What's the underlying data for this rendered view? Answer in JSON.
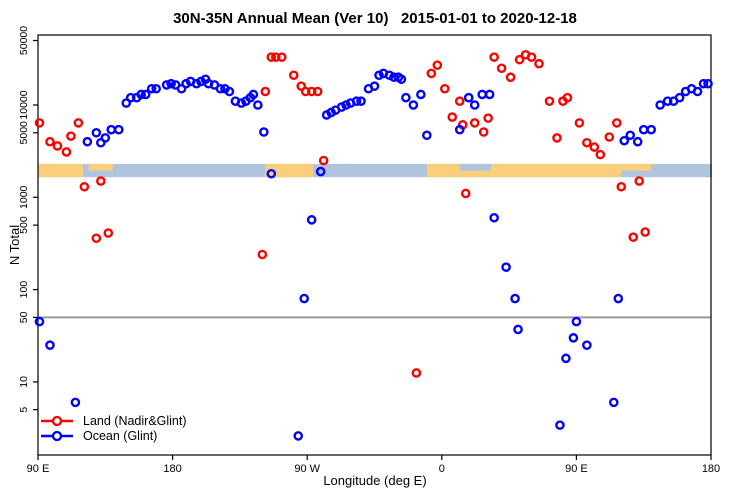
{
  "title": "30N-35N Annual Mean (Ver 10)   2015-01-01 to 2020-12-18",
  "legend": {
    "items": [
      {
        "label": "Land (Nadir&Glint)",
        "color": "#ff0000"
      },
      {
        "label": "Ocean (Glint)",
        "color": "#0000ff"
      }
    ]
  },
  "chart_data": {
    "type": "scatter",
    "title": "30N-35N Annual Mean (Ver 10)   2015-01-01 to 2020-12-18",
    "xlabel": "Longitude (deg E)",
    "ylabel": "N Total",
    "x_axis_note": "axis spans 450 degrees eastward from 90E: 90E -> 180 -> 90W -> 0 -> 90E -> 180; deg coordinate below runs 90..540",
    "x_range_deg": [
      90,
      540
    ],
    "y_scale": "log10",
    "ylim": [
      1.6,
      57000
    ],
    "grid": false,
    "x_ticks": [
      {
        "deg": 90,
        "label": "90 E"
      },
      {
        "deg": 180,
        "label": "180"
      },
      {
        "deg": 270,
        "label": "90 W"
      },
      {
        "deg": 360,
        "label": "0"
      },
      {
        "deg": 450,
        "label": "90 E"
      },
      {
        "deg": 540,
        "label": "180"
      }
    ],
    "y_ticks": [
      {
        "value": 50000,
        "label": "50000"
      },
      {
        "value": 10000,
        "label": "10000"
      },
      {
        "value": 5000,
        "label": "5000"
      },
      {
        "value": 1000,
        "label": "1000"
      },
      {
        "value": 500,
        "label": "500"
      },
      {
        "value": 100,
        "label": "100"
      },
      {
        "value": 50,
        "label": "50"
      },
      {
        "value": 10,
        "label": "10"
      },
      {
        "value": 5,
        "label": "5"
      }
    ],
    "reference_line": {
      "y": 50,
      "color": "#999999"
    },
    "map_strip": {
      "description": "land/ocean map band of the 30N-35N latitude zone drawn across the plot",
      "y_value_range": [
        1650,
        2300
      ],
      "ocean_color": "#b0c4de",
      "land_color": "#f9cf7c",
      "land_segments_deg": [
        [
          90,
          120
        ],
        [
          242,
          274
        ],
        [
          350,
          480
        ]
      ],
      "partial_land_segments_deg": [
        [
          124,
          140
        ],
        [
          480,
          500
        ]
      ],
      "partial_ocean_segments_deg": [
        [
          372,
          393
        ]
      ]
    },
    "series": [
      {
        "name": "Land (Nadir&Glint)",
        "color": "#ff0000",
        "points": [
          [
            91,
            6400
          ],
          [
            98,
            4000
          ],
          [
            103,
            3600
          ],
          [
            109,
            3100
          ],
          [
            112,
            4600
          ],
          [
            117,
            6400
          ],
          [
            121,
            1300
          ],
          [
            132,
            1500
          ],
          [
            129,
            360
          ],
          [
            137,
            410
          ],
          [
            242,
            14000
          ],
          [
            246,
            33000
          ],
          [
            249,
            33000
          ],
          [
            253,
            33000
          ],
          [
            261,
            21000
          ],
          [
            266,
            16000
          ],
          [
            269,
            14000
          ],
          [
            273,
            14000
          ],
          [
            277,
            14000
          ],
          [
            281,
            2500
          ],
          [
            240,
            240
          ],
          [
            353,
            22000
          ],
          [
            357,
            27000
          ],
          [
            362,
            15000
          ],
          [
            367,
            7400
          ],
          [
            372,
            11000
          ],
          [
            374,
            6100
          ],
          [
            382,
            6400
          ],
          [
            388,
            5100
          ],
          [
            391,
            7200
          ],
          [
            376,
            1100
          ],
          [
            395,
            33000
          ],
          [
            400,
            25000
          ],
          [
            406,
            20000
          ],
          [
            412,
            31000
          ],
          [
            416,
            35000
          ],
          [
            420,
            33000
          ],
          [
            425,
            28000
          ],
          [
            343,
            12.5
          ],
          [
            432,
            11000
          ],
          [
            437,
            4400
          ],
          [
            441,
            11000
          ],
          [
            444,
            12000
          ],
          [
            452,
            6400
          ],
          [
            457,
            3900
          ],
          [
            462,
            3500
          ],
          [
            466,
            2900
          ],
          [
            472,
            4500
          ],
          [
            477,
            6400
          ],
          [
            480,
            1300
          ],
          [
            488,
            370
          ],
          [
            492,
            1500
          ],
          [
            496,
            420
          ]
        ]
      },
      {
        "name": "Ocean (Glint)",
        "color": "#0000ff",
        "points": [
          [
            123,
            4000
          ],
          [
            129,
            5000
          ],
          [
            132,
            3900
          ],
          [
            135,
            4400
          ],
          [
            139,
            5400
          ],
          [
            144,
            5400
          ],
          [
            149,
            10500
          ],
          [
            152,
            12000
          ],
          [
            156,
            12000
          ],
          [
            159,
            13000
          ],
          [
            162,
            13000
          ],
          [
            166,
            15000
          ],
          [
            169,
            15000
          ],
          [
            176,
            16500
          ],
          [
            179,
            17000
          ],
          [
            182,
            16500
          ],
          [
            186,
            15000
          ],
          [
            189,
            17000
          ],
          [
            192,
            18000
          ],
          [
            196,
            17000
          ],
          [
            199,
            18000
          ],
          [
            202,
            19000
          ],
          [
            204,
            17000
          ],
          [
            208,
            16500
          ],
          [
            212,
            15000
          ],
          [
            215,
            15000
          ],
          [
            218,
            14000
          ],
          [
            222,
            11000
          ],
          [
            226,
            10500
          ],
          [
            229,
            11000
          ],
          [
            232,
            12000
          ],
          [
            234,
            13000
          ],
          [
            237,
            10000
          ],
          [
            241,
            5100
          ],
          [
            246,
            1800
          ],
          [
            279,
            1900
          ],
          [
            273,
            570
          ],
          [
            268,
            80
          ],
          [
            264,
            2.6
          ],
          [
            283,
            7800
          ],
          [
            286,
            8300
          ],
          [
            289,
            8800
          ],
          [
            293,
            9500
          ],
          [
            296,
            10000
          ],
          [
            299,
            10500
          ],
          [
            303,
            11000
          ],
          [
            306,
            11000
          ],
          [
            311,
            15000
          ],
          [
            315,
            16000
          ],
          [
            318,
            21000
          ],
          [
            321,
            22000
          ],
          [
            325,
            21000
          ],
          [
            328,
            20000
          ],
          [
            331,
            20000
          ],
          [
            333,
            19000
          ],
          [
            336,
            12000
          ],
          [
            341,
            10000
          ],
          [
            346,
            13000
          ],
          [
            350,
            4700
          ],
          [
            378,
            12000
          ],
          [
            387,
            13000
          ],
          [
            392,
            13000
          ],
          [
            382,
            10000
          ],
          [
            372,
            5400
          ],
          [
            395,
            600
          ],
          [
            403,
            175
          ],
          [
            409,
            80
          ],
          [
            478,
            80
          ],
          [
            450,
            45
          ],
          [
            411,
            37
          ],
          [
            448,
            30
          ],
          [
            457,
            25
          ],
          [
            443,
            18
          ],
          [
            475,
            6
          ],
          [
            439,
            3.4
          ],
          [
            91,
            45
          ],
          [
            98,
            25
          ],
          [
            115,
            6
          ],
          [
            482,
            4100
          ],
          [
            486,
            4700
          ],
          [
            491,
            4000
          ],
          [
            495,
            5400
          ],
          [
            500,
            5400
          ],
          [
            506,
            10000
          ],
          [
            511,
            11000
          ],
          [
            515,
            11000
          ],
          [
            519,
            12000
          ],
          [
            523,
            14000
          ],
          [
            527,
            15000
          ],
          [
            531,
            14000
          ],
          [
            535,
            17000
          ],
          [
            538,
            17000
          ]
        ]
      }
    ]
  }
}
